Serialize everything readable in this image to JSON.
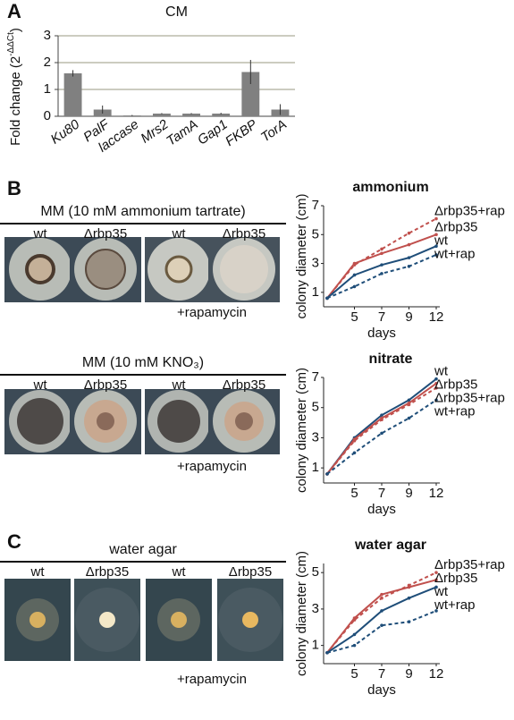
{
  "figure": {
    "panels": [
      "A",
      "B",
      "C"
    ],
    "plates": [
      {
        "header": "MM (10 mM ammonium tartrate)",
        "labels": [
          "wt",
          "Δrbp35",
          "wt",
          "Δrbp35"
        ],
        "note": "+rapamycin"
      },
      {
        "header": "MM (10 mM KNO₃)",
        "labels": [
          "wt",
          "Δrbp35",
          "wt",
          "Δrbp35"
        ],
        "note": "+rapamycin"
      },
      {
        "header": "water agar",
        "labels": [
          "wt",
          "Δrbp35",
          "wt",
          "Δrbp35"
        ],
        "note": "+rapamycin"
      }
    ]
  },
  "chart_data": [
    {
      "type": "bar",
      "title": "CM",
      "ylabel": "Fold change (2",
      "ylabel_sup": "-ΔΔCt",
      "ylabel_end": ")",
      "categories": [
        "Ku80",
        "PalF",
        "laccase",
        "Mrs2",
        "TamA",
        "Gap1",
        "FKBP",
        "TorA"
      ],
      "values": [
        1.6,
        0.25,
        0.03,
        0.1,
        0.1,
        0.1,
        1.65,
        0.25
      ],
      "errors": [
        0.12,
        0.15,
        0.02,
        0.02,
        0.02,
        0.03,
        0.45,
        0.2
      ],
      "color": "#808080",
      "ylim": [
        0,
        3
      ],
      "yticks": [
        0,
        1,
        2,
        3
      ],
      "grid": true
    },
    {
      "type": "line",
      "title": "ammonium",
      "xlabel": "days",
      "ylabel": "colony diameter (cm)",
      "categories": [
        null,
        "5",
        "7",
        "9",
        "12"
      ],
      "ylim": [
        0,
        7
      ],
      "yticks": [
        1,
        3,
        5,
        7
      ],
      "series": [
        {
          "name": "Δrbp35+rap",
          "color": "#c0504d",
          "dash": true,
          "values": [
            0.6,
            2.9,
            4.0,
            5.1,
            6.1
          ]
        },
        {
          "name": "Δrbp35",
          "color": "#c0504d",
          "dash": false,
          "values": [
            0.6,
            3.0,
            3.7,
            4.3,
            5.0
          ]
        },
        {
          "name": "wt",
          "color": "#1f4e79",
          "dash": false,
          "values": [
            0.6,
            2.2,
            2.9,
            3.4,
            4.2
          ]
        },
        {
          "name": "wt+rap",
          "color": "#1f4e79",
          "dash": true,
          "values": [
            0.6,
            1.4,
            2.3,
            2.8,
            3.6
          ]
        }
      ]
    },
    {
      "type": "line",
      "title": "nitrate",
      "xlabel": "days",
      "ylabel": "colony diameter (cm)",
      "categories": [
        null,
        "5",
        "7",
        "9",
        "12"
      ],
      "ylim": [
        0,
        7
      ],
      "yticks": [
        1,
        3,
        5,
        7
      ],
      "series": [
        {
          "name": "wt",
          "color": "#1f4e79",
          "dash": false,
          "values": [
            0.6,
            3.0,
            4.5,
            5.5,
            6.9
          ]
        },
        {
          "name": "Δrbp35",
          "color": "#c0504d",
          "dash": false,
          "values": [
            0.6,
            2.9,
            4.3,
            5.3,
            6.6
          ]
        },
        {
          "name": "Δrbp35+rap",
          "color": "#c0504d",
          "dash": true,
          "values": [
            0.6,
            2.8,
            4.2,
            5.2,
            6.3
          ]
        },
        {
          "name": "wt+rap",
          "color": "#1f4e79",
          "dash": true,
          "values": [
            0.6,
            2.0,
            3.3,
            4.3,
            5.5
          ]
        }
      ]
    },
    {
      "type": "line",
      "title": "water agar",
      "xlabel": "days",
      "ylabel": "colony diameter (cm)",
      "categories": [
        null,
        "5",
        "7",
        "9",
        "12"
      ],
      "ylim": [
        0,
        5.5
      ],
      "yticks": [
        1,
        3,
        5
      ],
      "series": [
        {
          "name": "Δrbp35+rap",
          "color": "#c0504d",
          "dash": true,
          "values": [
            0.6,
            2.4,
            3.6,
            4.3,
            5.0
          ]
        },
        {
          "name": "Δrbp35",
          "color": "#c0504d",
          "dash": false,
          "values": [
            0.6,
            2.5,
            3.8,
            4.2,
            4.6
          ]
        },
        {
          "name": "wt",
          "color": "#1f4e79",
          "dash": false,
          "values": [
            0.6,
            1.6,
            2.9,
            3.6,
            4.2
          ]
        },
        {
          "name": "wt+rap",
          "color": "#1f4e79",
          "dash": true,
          "values": [
            0.6,
            1.0,
            2.1,
            2.3,
            2.9
          ]
        }
      ]
    }
  ]
}
